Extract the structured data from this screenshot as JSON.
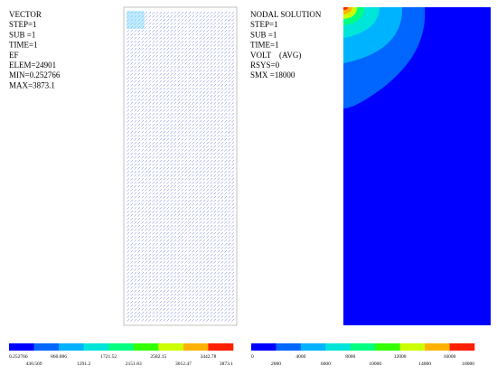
{
  "vector_panel": {
    "lines": [
      "VECTOR",
      "STEP=1",
      "SUB =1",
      "TIME=1",
      "EF",
      "ELEM=24901",
      "MIN=0.252766",
      "MAX=3873.1"
    ]
  },
  "nodal_panel": {
    "lines": [
      "NODAL SOLUTION",
      "STEP=1",
      "SUB =1",
      "TIME=1",
      "VOLT    (AVG)",
      "RSYS=0",
      "SMX =18000"
    ]
  },
  "vector_legend": {
    "colors": [
      "#0000ff",
      "#0066ff",
      "#00b3ff",
      "#00e5d9",
      "#00ff80",
      "#33ff00",
      "#ccff00",
      "#ffb300",
      "#ff2000"
    ],
    "labels": [
      "0.252766",
      "430.569",
      "860.886",
      "1291.2",
      "1721.52",
      "2151.83",
      "2582.15",
      "3012.47",
      "3442.78",
      "3873.1"
    ]
  },
  "nodal_legend": {
    "colors": [
      "#0000ff",
      "#0066ff",
      "#00b3ff",
      "#00e5d9",
      "#00ff80",
      "#33ff00",
      "#ccff00",
      "#ffb300",
      "#ff2000"
    ],
    "labels": [
      "0",
      "2000",
      "4000",
      "6000",
      "8000",
      "10000",
      "12000",
      "14000",
      "16000",
      "18000"
    ]
  }
}
